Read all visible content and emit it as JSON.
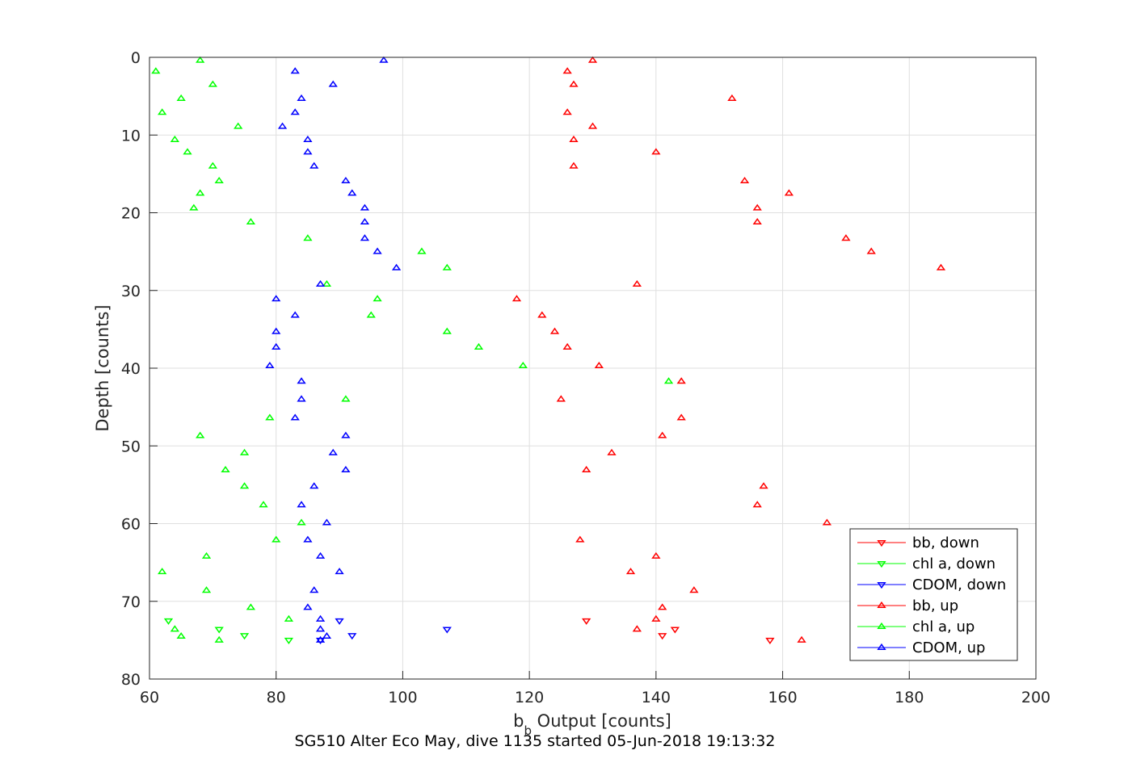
{
  "chart_data": {
    "type": "scatter",
    "title": "",
    "caption": "SG510 Alter Eco May, dive 1135 started 05-Jun-2018 19:13:32",
    "xlabel_main": "b",
    "xlabel_sub": "b",
    "xlabel_rest": " Output [counts]",
    "ylabel": "Depth [counts]",
    "xlim": [
      60,
      200
    ],
    "ylim": [
      0,
      80
    ],
    "y_reversed": true,
    "grid": true,
    "legend_position": "bottom-right",
    "xticks": [
      60,
      80,
      100,
      120,
      140,
      160,
      180,
      200
    ],
    "yticks": [
      0,
      10,
      20,
      30,
      40,
      50,
      60,
      70,
      80
    ],
    "xtick_labels": [
      "60",
      "80",
      "100",
      "120",
      "140",
      "160",
      "180",
      "200"
    ],
    "ytick_labels": [
      "0",
      "10",
      "20",
      "30",
      "40",
      "50",
      "60",
      "70",
      "80"
    ],
    "series": [
      {
        "name": "bb, down",
        "color": "#ff0000",
        "marker": "triangle-down",
        "points": [
          [
            129,
            72.5
          ],
          [
            143,
            73.6
          ],
          [
            141,
            74.4
          ],
          [
            158,
            75.0
          ]
        ]
      },
      {
        "name": "chl a, down",
        "color": "#00ff00",
        "marker": "triangle-down",
        "points": [
          [
            63,
            72.5
          ],
          [
            71,
            73.6
          ],
          [
            75,
            74.4
          ],
          [
            82,
            75.0
          ]
        ]
      },
      {
        "name": "CDOM, down",
        "color": "#0000ff",
        "marker": "triangle-down",
        "points": [
          [
            90,
            72.5
          ],
          [
            107,
            73.6
          ],
          [
            92,
            74.4
          ],
          [
            87,
            75.0
          ]
        ]
      },
      {
        "name": "bb, up",
        "color": "#ff0000",
        "marker": "triangle-up",
        "points": [
          [
            130,
            0.4
          ],
          [
            126,
            1.8
          ],
          [
            127,
            3.5
          ],
          [
            152,
            5.3
          ],
          [
            126,
            7.1
          ],
          [
            130,
            8.9
          ],
          [
            127,
            10.6
          ],
          [
            140,
            12.2
          ],
          [
            127,
            14.0
          ],
          [
            154,
            15.9
          ],
          [
            161,
            17.5
          ],
          [
            156,
            19.4
          ],
          [
            156,
            21.2
          ],
          [
            170,
            23.3
          ],
          [
            174,
            25.0
          ],
          [
            185,
            27.1
          ],
          [
            137,
            29.2
          ],
          [
            118,
            31.1
          ],
          [
            122,
            33.2
          ],
          [
            124,
            35.3
          ],
          [
            126,
            37.3
          ],
          [
            131,
            39.7
          ],
          [
            144,
            41.7
          ],
          [
            125,
            44.0
          ],
          [
            144,
            46.4
          ],
          [
            141,
            48.7
          ],
          [
            133,
            50.9
          ],
          [
            129,
            53.1
          ],
          [
            157,
            55.2
          ],
          [
            156,
            57.6
          ],
          [
            167,
            59.9
          ],
          [
            128,
            62.1
          ],
          [
            140,
            64.2
          ],
          [
            136,
            66.2
          ],
          [
            146,
            68.6
          ],
          [
            141,
            70.8
          ],
          [
            140,
            72.3
          ],
          [
            137,
            73.6
          ],
          [
            163,
            75.0
          ]
        ]
      },
      {
        "name": "chl a, up",
        "color": "#00ff00",
        "marker": "triangle-up",
        "points": [
          [
            68,
            0.4
          ],
          [
            61,
            1.8
          ],
          [
            70,
            3.5
          ],
          [
            65,
            5.3
          ],
          [
            62,
            7.1
          ],
          [
            74,
            8.9
          ],
          [
            64,
            10.6
          ],
          [
            66,
            12.2
          ],
          [
            70,
            14.0
          ],
          [
            71,
            15.9
          ],
          [
            68,
            17.5
          ],
          [
            67,
            19.4
          ],
          [
            76,
            21.2
          ],
          [
            85,
            23.3
          ],
          [
            103,
            25.0
          ],
          [
            107,
            27.1
          ],
          [
            88,
            29.2
          ],
          [
            96,
            31.1
          ],
          [
            95,
            33.2
          ],
          [
            107,
            35.3
          ],
          [
            112,
            37.3
          ],
          [
            119,
            39.7
          ],
          [
            142,
            41.7
          ],
          [
            91,
            44.0
          ],
          [
            79,
            46.4
          ],
          [
            68,
            48.7
          ],
          [
            75,
            50.9
          ],
          [
            72,
            53.1
          ],
          [
            75,
            55.2
          ],
          [
            78,
            57.6
          ],
          [
            84,
            59.9
          ],
          [
            80,
            62.1
          ],
          [
            69,
            64.2
          ],
          [
            62,
            66.2
          ],
          [
            69,
            68.6
          ],
          [
            76,
            70.8
          ],
          [
            82,
            72.3
          ],
          [
            64,
            73.6
          ],
          [
            65,
            74.5
          ],
          [
            71,
            75.0
          ]
        ]
      },
      {
        "name": "CDOM, up",
        "color": "#0000ff",
        "marker": "triangle-up",
        "points": [
          [
            97,
            0.4
          ],
          [
            83,
            1.8
          ],
          [
            89,
            3.5
          ],
          [
            84,
            5.3
          ],
          [
            83,
            7.1
          ],
          [
            81,
            8.9
          ],
          [
            85,
            10.6
          ],
          [
            85,
            12.2
          ],
          [
            86,
            14.0
          ],
          [
            91,
            15.9
          ],
          [
            92,
            17.5
          ],
          [
            94,
            19.4
          ],
          [
            94,
            21.2
          ],
          [
            94,
            23.3
          ],
          [
            96,
            25.0
          ],
          [
            99,
            27.1
          ],
          [
            87,
            29.2
          ],
          [
            80,
            31.1
          ],
          [
            83,
            33.2
          ],
          [
            80,
            35.3
          ],
          [
            80,
            37.3
          ],
          [
            79,
            39.7
          ],
          [
            84,
            41.7
          ],
          [
            84,
            44.0
          ],
          [
            83,
            46.4
          ],
          [
            91,
            48.7
          ],
          [
            89,
            50.9
          ],
          [
            91,
            53.1
          ],
          [
            86,
            55.2
          ],
          [
            84,
            57.6
          ],
          [
            88,
            59.9
          ],
          [
            85,
            62.1
          ],
          [
            87,
            64.2
          ],
          [
            90,
            66.2
          ],
          [
            86,
            68.6
          ],
          [
            85,
            70.8
          ],
          [
            87,
            72.3
          ],
          [
            87,
            73.6
          ],
          [
            88,
            74.5
          ],
          [
            87,
            75.0
          ]
        ]
      }
    ]
  }
}
